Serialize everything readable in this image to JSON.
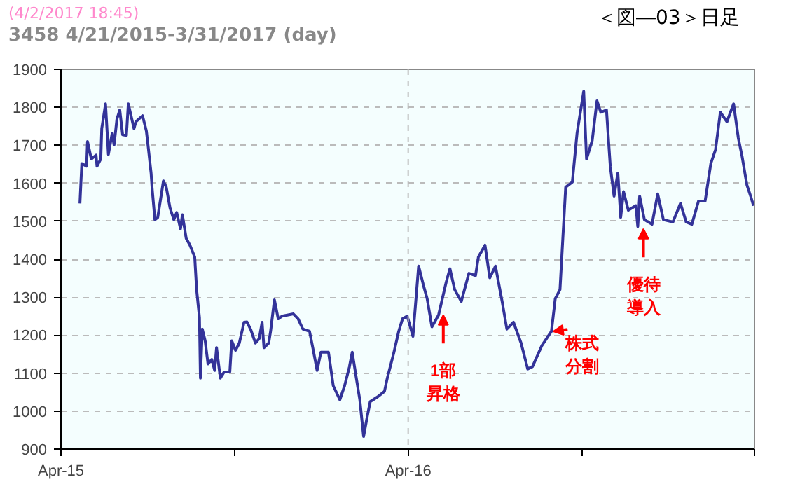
{
  "chart_data": {
    "type": "line",
    "subtitle": "(4/2/2017 18:45)",
    "title": "3458 4/21/2015-3/31/2017 (day)",
    "x": [
      "2015-04-21",
      "2015-04-23",
      "2015-04-28",
      "2015-04-29",
      "2015-05-03",
      "2015-05-08",
      "2015-05-09",
      "2015-05-13",
      "2015-05-14",
      "2015-05-18",
      "2015-05-21",
      "2015-05-25",
      "2015-05-27",
      "2015-05-30",
      "2015-06-02",
      "2015-06-05",
      "2015-06-09",
      "2015-06-11",
      "2015-06-17",
      "2015-06-19",
      "2015-06-26",
      "2015-06-30",
      "2015-07-02",
      "2015-07-05",
      "2015-07-06",
      "2015-07-09",
      "2015-07-12",
      "2015-07-18",
      "2015-07-21",
      "2015-07-25",
      "2015-07-29",
      "2015-08-01",
      "2015-08-05",
      "2015-08-07",
      "2015-08-11",
      "2015-08-15",
      "2015-08-20",
      "2015-08-22",
      "2015-08-25",
      "2015-08-26",
      "2015-08-28",
      "2015-08-31",
      "2015-09-03",
      "2015-09-07",
      "2015-09-10",
      "2015-09-12",
      "2015-09-16",
      "2015-09-20",
      "2015-09-26",
      "2015-09-28",
      "2015-10-02",
      "2015-10-06",
      "2015-10-11",
      "2015-10-14",
      "2015-10-18",
      "2015-10-23",
      "2015-10-27",
      "2015-10-30",
      "2015-11-01",
      "2015-11-06",
      "2015-11-08",
      "2015-11-12",
      "2015-11-16",
      "2015-11-20",
      "2015-12-02",
      "2015-12-07",
      "2015-12-12",
      "2015-12-19",
      "2015-12-23",
      "2015-12-27",
      "2015-12-31",
      "2016-01-08",
      "2016-01-13",
      "2016-01-20",
      "2016-01-25",
      "2016-01-30",
      "2016-02-02",
      "2016-02-06",
      "2016-02-10",
      "2016-02-14",
      "2016-02-18",
      "2016-02-21",
      "2016-02-29",
      "2016-03-07",
      "2016-03-10",
      "2016-03-17",
      "2016-03-22",
      "2016-03-26",
      "2016-03-31",
      "2016-04-06",
      "2016-04-12",
      "2016-04-17",
      "2016-04-21",
      "2016-04-26",
      "2016-05-03",
      "2016-05-11",
      "2016-05-15",
      "2016-05-20",
      "2016-05-27",
      "2016-06-04",
      "2016-06-11",
      "2016-06-14",
      "2016-06-21",
      "2016-06-26",
      "2016-07-02",
      "2016-07-09",
      "2016-07-14",
      "2016-07-21",
      "2016-07-29",
      "2016-08-05",
      "2016-08-10",
      "2016-08-20",
      "2016-08-30",
      "2016-09-03",
      "2016-09-08",
      "2016-09-14",
      "2016-09-21",
      "2016-09-26",
      "2016-10-03",
      "2016-10-06",
      "2016-10-12",
      "2016-10-17",
      "2016-10-21",
      "2016-10-27",
      "2016-10-31",
      "2016-11-04",
      "2016-11-08",
      "2016-11-11",
      "2016-11-14",
      "2016-11-19",
      "2016-11-27",
      "2016-11-29",
      "2016-12-01",
      "2016-12-06",
      "2016-12-14",
      "2016-12-20",
      "2016-12-26",
      "2017-01-05",
      "2017-01-13",
      "2017-01-19",
      "2017-01-25",
      "2017-02-01",
      "2017-02-08",
      "2017-02-14",
      "2017-02-19",
      "2017-02-24",
      "2017-03-03",
      "2017-03-10",
      "2017-03-15",
      "2017-03-19",
      "2017-03-24",
      "2017-03-28",
      "2017-03-31"
    ],
    "series": [
      {
        "color": "#333399",
        "values": [
          1547,
          1652,
          1645,
          1710,
          1664,
          1674,
          1645,
          1664,
          1744,
          1809,
          1676,
          1732,
          1701,
          1769,
          1793,
          1728,
          1726,
          1809,
          1744,
          1762,
          1778,
          1738,
          1695,
          1627,
          1590,
          1504,
          1510,
          1606,
          1590,
          1535,
          1504,
          1523,
          1480,
          1517,
          1455,
          1437,
          1406,
          1320,
          1246,
          1087,
          1216,
          1185,
          1124,
          1136,
          1107,
          1167,
          1087,
          1103,
          1103,
          1185,
          1160,
          1179,
          1234,
          1235,
          1215,
          1179,
          1191,
          1234,
          1167,
          1179,
          1211,
          1293,
          1243,
          1250,
          1256,
          1243,
          1216,
          1210,
          1160,
          1107,
          1155,
          1155,
          1067,
          1030,
          1067,
          1116,
          1155,
          1092,
          1030,
          933,
          988,
          1025,
          1038,
          1052,
          1087,
          1155,
          1210,
          1243,
          1250,
          1197,
          1382,
          1332,
          1296,
          1222,
          1253,
          1339,
          1375,
          1320,
          1289,
          1363,
          1357,
          1406,
          1437,
          1351,
          1382,
          1289,
          1216,
          1234,
          1179,
          1111,
          1117,
          1173,
          1210,
          1296,
          1320,
          1590,
          1603,
          1732,
          1842,
          1664,
          1713,
          1817,
          1787,
          1793,
          1645,
          1566,
          1627,
          1510,
          1578,
          1529,
          1541,
          1486,
          1566,
          1504,
          1492,
          1572,
          1504,
          1498,
          1547,
          1498,
          1492,
          1553,
          1553,
          1652,
          1689,
          1787,
          1762,
          1809,
          1719,
          1670,
          1596,
          1566,
          1541
        ]
      }
    ],
    "xlim": [
      "2015-04-01",
      "2017-04-01"
    ],
    "xticks": [
      {
        "value": "2015-04-01",
        "label": "Apr-15"
      },
      {
        "value": "2015-10-01",
        "label": null
      },
      {
        "value": "2016-04-01",
        "label": "Apr-16"
      },
      {
        "value": "2016-10-01",
        "label": null
      },
      {
        "value": "2017-04-01",
        "label": null
      }
    ],
    "ylim": [
      900,
      1900
    ],
    "yticks": [
      900,
      1000,
      1100,
      1200,
      1300,
      1400,
      1500,
      1600,
      1700,
      1800,
      1900
    ],
    "grid": "y",
    "marker": "none",
    "line_style": "solid",
    "ref_lines": [
      {
        "axis": "x",
        "value": "2016-04-01",
        "color": "#bbbbbb",
        "line_style": "dashed"
      }
    ],
    "annotations": [
      "＜図―03＞日足",
      {
        "text": "1部昇格",
        "x": "2016-05-08",
        "y": 1253
      },
      {
        "text": "株式分割",
        "x": "2016-09-01",
        "y": 1210
      },
      {
        "text": "優待導入",
        "x": "2016-12-05",
        "y": 1480
      }
    ]
  }
}
